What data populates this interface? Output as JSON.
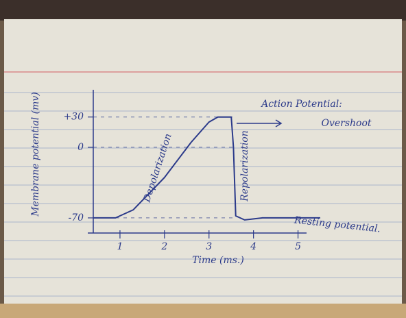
{
  "chart_data": {
    "type": "line",
    "title": "Action Potential:",
    "x_label": "Time (ms.)",
    "y_label": "Membrane potential (mv)",
    "x": [
      0.4,
      0.9,
      1.3,
      2.0,
      2.6,
      3.0,
      3.2,
      3.5,
      3.55,
      3.6,
      3.8,
      4.2,
      5.5
    ],
    "values": [
      -70,
      -70,
      -62,
      -30,
      5,
      25,
      30,
      30,
      0,
      -68,
      -72,
      -70,
      -70
    ],
    "color": "#2b3a8a",
    "xlim": [
      0.4,
      5.5
    ],
    "xticks": [
      1,
      2,
      3,
      4,
      5
    ],
    "ylim": [
      -85,
      57
    ],
    "yticks": [
      -70,
      0,
      {
        "value": 30,
        "label": "+30"
      }
    ],
    "grid": true,
    "annotations": [
      "Overshoot",
      "Depolarization",
      "Repolarization",
      "Resting potential."
    ]
  }
}
